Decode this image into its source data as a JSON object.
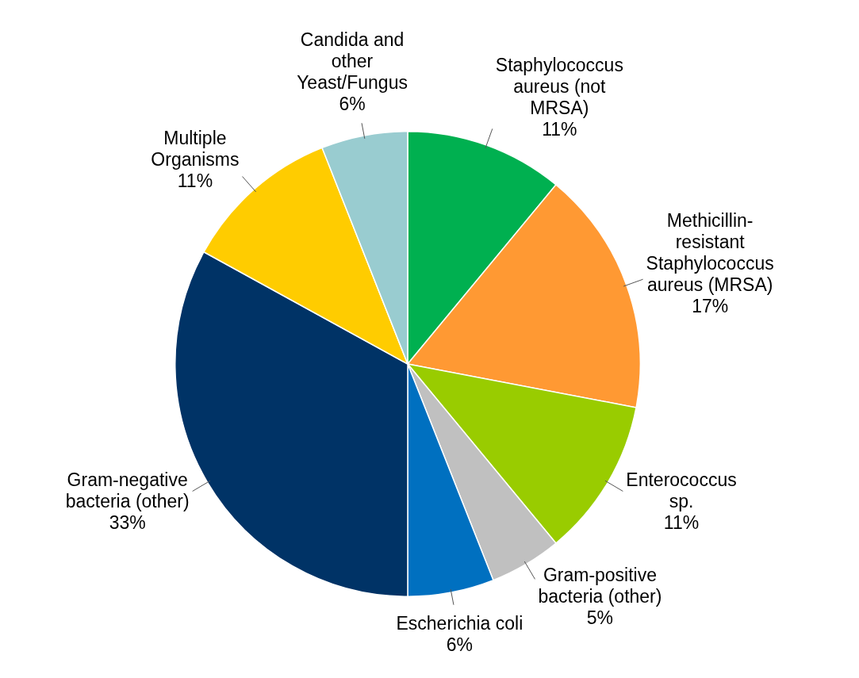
{
  "chart_data": {
    "type": "pie",
    "categories": [
      "Staphylococcus aureus (not MRSA)",
      "Methicillin-resistant Staphylococcus aureus (MRSA)",
      "Enterococcus sp.",
      "Gram-positive bacteria (other)",
      "Escherichia coli",
      "Gram-negative bacteria (other)",
      "Multiple Organisms",
      "Candida and other Yeast/Fungus"
    ],
    "values": [
      11,
      17,
      11,
      5,
      6,
      33,
      11,
      6
    ],
    "value_labels": [
      "11%",
      "17%",
      "11%",
      "5%",
      "6%",
      "33%",
      "11%",
      "6%"
    ],
    "colors": [
      "#00b050",
      "#ff9933",
      "#99cc00",
      "#c0c0c0",
      "#0070c0",
      "#003366",
      "#ffcc00",
      "#99ccd0"
    ],
    "legend": false
  }
}
